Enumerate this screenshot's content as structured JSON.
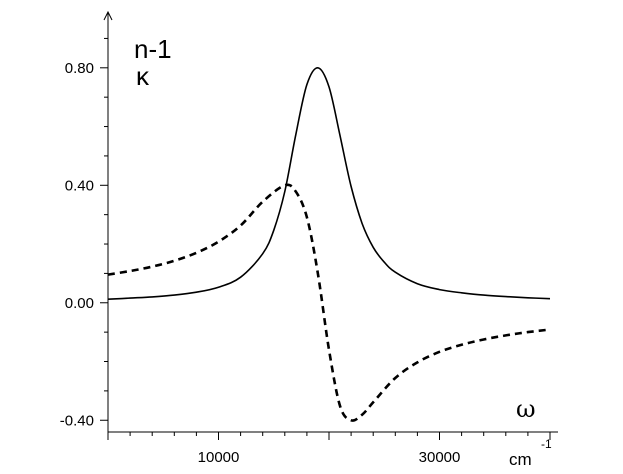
{
  "chart_data": {
    "type": "line",
    "title": "",
    "xlabel": "ω",
    "x_unit": "cm",
    "x_unit_exponent": "-1",
    "ylabel": "",
    "xlim": [
      0,
      40000
    ],
    "ylim": [
      -0.44,
      0.99
    ],
    "x_ticks": [
      10000,
      30000
    ],
    "x_minor_step": 2000,
    "y_ticks": [
      {
        "value": -0.4,
        "label": "-0.40"
      },
      {
        "value": 0.0,
        "label": "0.00"
      },
      {
        "value": 0.4,
        "label": "0.40"
      },
      {
        "value": 0.8,
        "label": "0.80"
      }
    ],
    "grid": false,
    "legend_labels": [
      "n-1",
      "κ"
    ],
    "series": [
      {
        "style": "dashed",
        "color": "#000000",
        "x": [
          0,
          2000,
          4000,
          6000,
          8000,
          10000,
          12000,
          14000,
          16000,
          17000,
          18000,
          19000,
          20000,
          21000,
          22000,
          23000,
          24000,
          26000,
          28000,
          30000,
          32000,
          34000,
          36000,
          38000,
          40000
        ],
        "y": [
          0.096,
          0.108,
          0.123,
          0.143,
          0.17,
          0.208,
          0.263,
          0.344,
          0.4,
          0.378,
          0.291,
          0.099,
          -0.16,
          -0.352,
          -0.4,
          -0.381,
          -0.339,
          -0.256,
          -0.203,
          -0.167,
          -0.143,
          -0.125,
          -0.111,
          -0.1,
          -0.091
        ]
      },
      {
        "style": "solid",
        "color": "#000000",
        "x": [
          0,
          2000,
          4000,
          6000,
          8000,
          10000,
          12000,
          14000,
          15000,
          16000,
          17000,
          18000,
          19000,
          20000,
          21000,
          22000,
          23000,
          24000,
          25000,
          26000,
          28000,
          30000,
          32000,
          34000,
          36000,
          38000,
          40000
        ],
        "y": [
          0.012,
          0.016,
          0.02,
          0.026,
          0.036,
          0.053,
          0.087,
          0.167,
          0.247,
          0.379,
          0.574,
          0.743,
          0.8,
          0.735,
          0.568,
          0.396,
          0.27,
          0.189,
          0.138,
          0.104,
          0.065,
          0.045,
          0.034,
          0.026,
          0.021,
          0.017,
          0.014
        ]
      }
    ]
  }
}
